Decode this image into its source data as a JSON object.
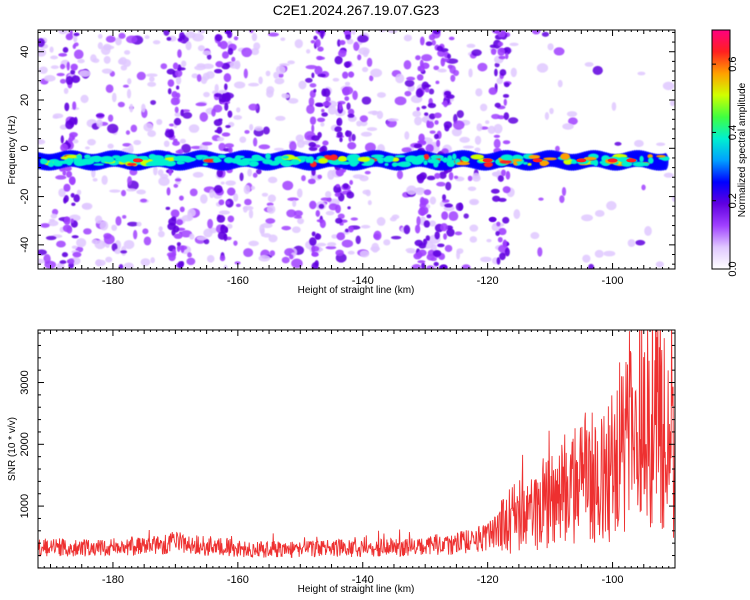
{
  "figure": {
    "title": "C2E1.2024.267.19.07.G23"
  },
  "chart_data": [
    {
      "type": "heatmap",
      "title": "C2E1.2024.267.19.07.G23",
      "xlabel": "Height of straight line (km)",
      "ylabel": "Frequency (Hz)",
      "xlim": [
        -192,
        -90
      ],
      "ylim": [
        -50,
        49
      ],
      "xticks": [
        -180,
        -160,
        -140,
        -120,
        -100
      ],
      "yticks": [
        -40,
        -20,
        0,
        20,
        40
      ],
      "band_center_hz": -5,
      "band_halfwidth_hz": 3.5,
      "vertical_streaks_km": [
        -187,
        -170,
        -162,
        -147,
        -143,
        -130,
        -127,
        -118
      ],
      "colorbar": {
        "label": "Normalized spectral amplitude",
        "range": [
          0.0,
          0.7
        ],
        "ticks": [
          0.0,
          0.2,
          0.4,
          0.6
        ],
        "tick_labels": [
          "0.0",
          "0.2",
          "0.4",
          "0.6"
        ],
        "colormap": [
          "#ffffff",
          "#e0c8ff",
          "#a040ff",
          "#6000e0",
          "#0000ff",
          "#00a0ff",
          "#00f0d0",
          "#40ff40",
          "#d0ff00",
          "#ffa000",
          "#ff2020",
          "#ff0080"
        ]
      }
    },
    {
      "type": "line",
      "xlabel": "Height of straight line (km)",
      "ylabel": "SNR (10 * v/v)",
      "xlim": [
        -192,
        -90
      ],
      "ylim": [
        -2,
        3850
      ],
      "xticks": [
        -180,
        -160,
        -140,
        -120,
        -100
      ],
      "yticks": [
        1000,
        2000,
        3000
      ],
      "color": "#ee3030",
      "series": [
        {
          "x": [
            -192,
            -188,
            -184,
            -180,
            -176,
            -172,
            -170,
            -168,
            -164,
            -160,
            -156,
            -152,
            -148,
            -144,
            -140,
            -136,
            -132,
            -128,
            -126,
            -124,
            -120,
            -118,
            -116,
            -114,
            -112,
            -110,
            -108,
            -106,
            -104,
            -102,
            -100,
            -98,
            -96,
            -95,
            -94,
            -93,
            -92,
            -91,
            -90
          ],
          "values": [
            330,
            340,
            320,
            330,
            350,
            360,
            420,
            380,
            350,
            320,
            300,
            300,
            310,
            320,
            300,
            330,
            330,
            380,
            360,
            420,
            500,
            640,
            800,
            900,
            950,
            1100,
            1300,
            1400,
            1500,
            1550,
            1650,
            1900,
            2300,
            2700,
            2400,
            2600,
            2100,
            1900,
            1850
          ]
        }
      ]
    }
  ]
}
